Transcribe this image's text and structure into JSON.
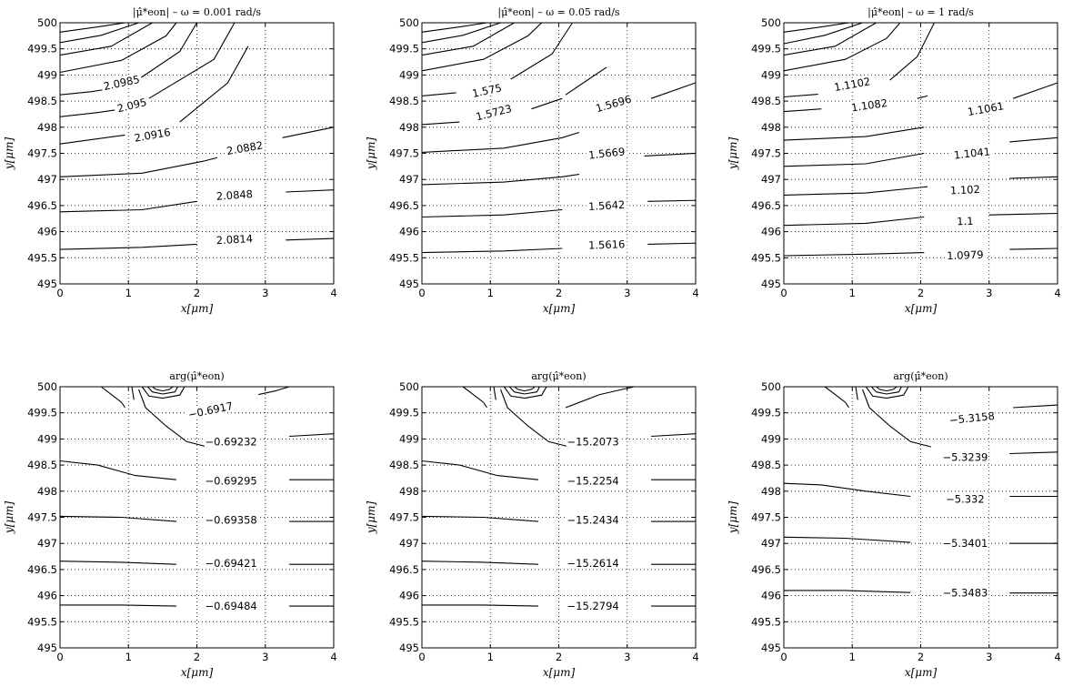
{
  "chart_data": [
    {
      "type": "contour",
      "title": "|μ̂*eon|  –  ω = 0.001 rad/s",
      "xlabel": "x[μm]",
      "ylabel": "y[μm]",
      "xlim": [
        0,
        4
      ],
      "ylim": [
        495,
        500
      ],
      "xticks": [
        "0",
        "1",
        "2",
        "3",
        "4"
      ],
      "yticks": [
        "495",
        "495.5",
        "496",
        "496.5",
        "497",
        "497.5",
        "498",
        "498.5",
        "499",
        "499.5",
        "500"
      ],
      "grid": true,
      "contour_levels": [
        {
          "label": "2.0985",
          "x": 0.9,
          "y": 498.85
        },
        {
          "label": "2.095",
          "x": 1.05,
          "y": 498.42
        },
        {
          "label": "2.0916",
          "x": 1.35,
          "y": 497.85
        },
        {
          "label": "2.0882",
          "x": 2.7,
          "y": 497.6
        },
        {
          "label": "2.0848",
          "x": 2.55,
          "y": 496.7
        },
        {
          "label": "2.0814",
          "x": 2.55,
          "y": 495.85
        }
      ]
    },
    {
      "type": "contour",
      "title": "|μ̂*eon|  –  ω = 0.05 rad/s",
      "xlabel": "x[μm]",
      "ylabel": "y[μm]",
      "xlim": [
        0,
        4
      ],
      "ylim": [
        495,
        500
      ],
      "xticks": [
        "0",
        "1",
        "2",
        "3",
        "4"
      ],
      "yticks": [
        "495",
        "495.5",
        "496",
        "496.5",
        "497",
        "497.5",
        "498",
        "498.5",
        "499",
        "499.5",
        "500"
      ],
      "grid": true,
      "contour_levels": [
        {
          "label": "1.575",
          "x": 0.95,
          "y": 498.7
        },
        {
          "label": "1.5723",
          "x": 1.05,
          "y": 498.28
        },
        {
          "label": "1.5696",
          "x": 2.8,
          "y": 498.45
        },
        {
          "label": "1.5669",
          "x": 2.7,
          "y": 497.5
        },
        {
          "label": "1.5642",
          "x": 2.7,
          "y": 496.5
        },
        {
          "label": "1.5616",
          "x": 2.7,
          "y": 495.75
        }
      ]
    },
    {
      "type": "contour",
      "title": "|μ̂*eon|  –  ω = 1 rad/s",
      "xlabel": "x[μm]",
      "ylabel": "y[μm]",
      "xlim": [
        0,
        4
      ],
      "ylim": [
        495,
        500
      ],
      "xticks": [
        "0",
        "1",
        "2",
        "3",
        "4"
      ],
      "yticks": [
        "495",
        "495.5",
        "496",
        "496.5",
        "497",
        "497.5",
        "498",
        "498.5",
        "499",
        "499.5",
        "500"
      ],
      "grid": true,
      "contour_levels": [
        {
          "label": "1.1102",
          "x": 1.0,
          "y": 498.82
        },
        {
          "label": "1.1082",
          "x": 1.25,
          "y": 498.42
        },
        {
          "label": "1.1061",
          "x": 2.95,
          "y": 498.35
        },
        {
          "label": "1.1041",
          "x": 2.75,
          "y": 497.5
        },
        {
          "label": "1.102",
          "x": 2.65,
          "y": 496.8
        },
        {
          "label": "1.1",
          "x": 2.65,
          "y": 496.2
        },
        {
          "label": "1.0979",
          "x": 2.65,
          "y": 495.55
        }
      ]
    },
    {
      "type": "contour",
      "title": "arg(μ̂*eon)",
      "xlabel": "x[μm]",
      "ylabel": "y[μm]",
      "xlim": [
        0,
        4
      ],
      "ylim": [
        495,
        500
      ],
      "xticks": [
        "0",
        "1",
        "2",
        "3",
        "4"
      ],
      "yticks": [
        "495",
        "495.5",
        "496",
        "496.5",
        "497",
        "497.5",
        "498",
        "498.5",
        "499",
        "499.5",
        "500"
      ],
      "grid": true,
      "contour_levels": [
        {
          "label": "−0.6917",
          "x": 2.2,
          "y": 499.55
        },
        {
          "label": "−0.69232",
          "x": 2.5,
          "y": 498.95
        },
        {
          "label": "−0.69295",
          "x": 2.5,
          "y": 498.2
        },
        {
          "label": "−0.69358",
          "x": 2.5,
          "y": 497.45
        },
        {
          "label": "−0.69421",
          "x": 2.5,
          "y": 496.62
        },
        {
          "label": "−0.69484",
          "x": 2.5,
          "y": 495.8
        }
      ]
    },
    {
      "type": "contour",
      "title": "arg(μ̂*eon)",
      "xlabel": "x[μm]",
      "ylabel": "y[μm]",
      "xlim": [
        0,
        4
      ],
      "ylim": [
        495,
        500
      ],
      "xticks": [
        "0",
        "1",
        "2",
        "3",
        "4"
      ],
      "yticks": [
        "495",
        "495.5",
        "496",
        "496.5",
        "497",
        "497.5",
        "498",
        "498.5",
        "499",
        "499.5",
        "500"
      ],
      "grid": true,
      "contour_levels": [
        {
          "label": "−15.2073",
          "x": 2.5,
          "y": 498.95
        },
        {
          "label": "−15.2254",
          "x": 2.5,
          "y": 498.2
        },
        {
          "label": "−15.2434",
          "x": 2.5,
          "y": 497.45
        },
        {
          "label": "−15.2614",
          "x": 2.5,
          "y": 496.62
        },
        {
          "label": "−15.2794",
          "x": 2.5,
          "y": 495.8
        }
      ]
    },
    {
      "type": "contour",
      "title": "arg(μ̂*eon)",
      "xlabel": "x[μm]",
      "ylabel": "y[μm]",
      "xlim": [
        0,
        4
      ],
      "ylim": [
        495,
        500
      ],
      "xticks": [
        "0",
        "1",
        "2",
        "3",
        "4"
      ],
      "yticks": [
        "495",
        "495.5",
        "496",
        "496.5",
        "497",
        "497.5",
        "498",
        "498.5",
        "499",
        "499.5",
        "500"
      ],
      "grid": true,
      "contour_levels": [
        {
          "label": "−5.3158",
          "x": 2.75,
          "y": 499.4
        },
        {
          "label": "−5.3239",
          "x": 2.65,
          "y": 498.65
        },
        {
          "label": "−5.332",
          "x": 2.65,
          "y": 497.85
        },
        {
          "label": "−5.3401",
          "x": 2.65,
          "y": 497.0
        },
        {
          "label": "−5.3483",
          "x": 2.65,
          "y": 496.05
        }
      ]
    }
  ]
}
